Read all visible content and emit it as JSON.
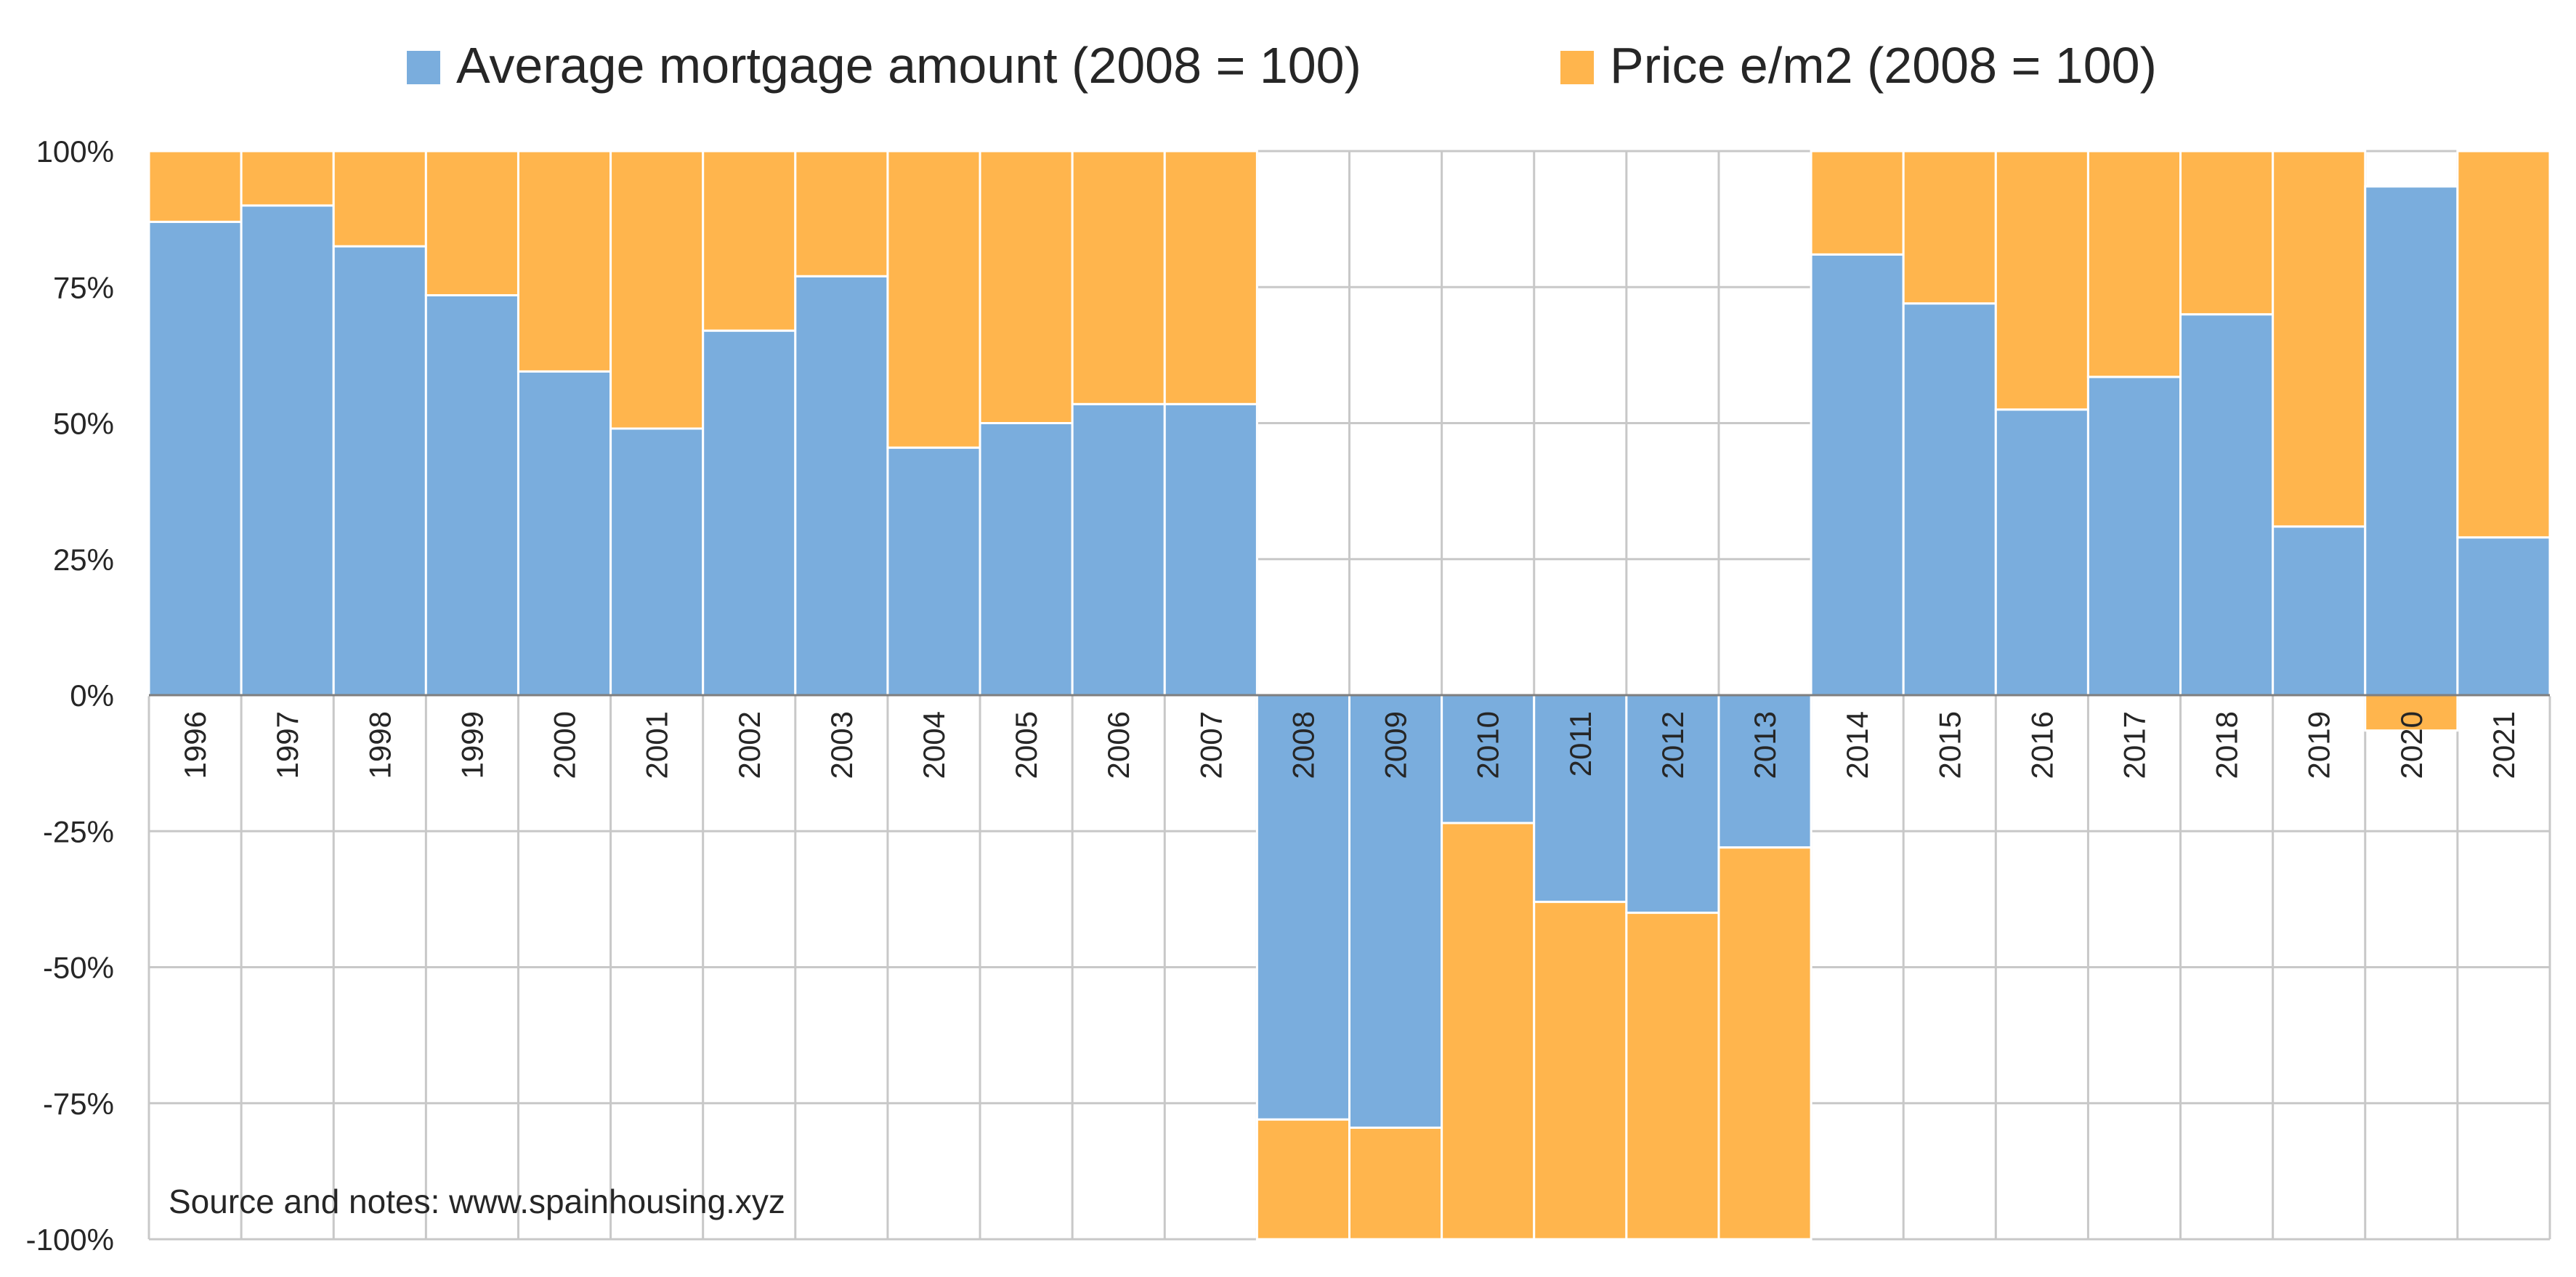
{
  "chart_data": {
    "type": "bar",
    "stacking": "percent-100",
    "categories": [
      "1996",
      "1997",
      "1998",
      "1999",
      "2000",
      "2001",
      "2002",
      "2003",
      "2004",
      "2005",
      "2006",
      "2007",
      "2008",
      "2009",
      "2010",
      "2011",
      "2012",
      "2013",
      "2014",
      "2015",
      "2016",
      "2017",
      "2018",
      "2019",
      "2020",
      "2021"
    ],
    "series": [
      {
        "name": "Average mortgage amount (2008 = 100)",
        "color": "#7aaddd",
        "values": [
          87,
          90,
          82.5,
          73.5,
          59.5,
          49,
          67,
          77,
          45.5,
          50,
          53.5,
          53.5,
          -78,
          -79.5,
          -23.5,
          -38,
          -40,
          -28,
          81,
          72,
          52.5,
          58.5,
          70,
          31,
          93.5,
          29
        ]
      },
      {
        "name": "Price e/m2 (2008 = 100)",
        "color": "#ffb54d",
        "values": [
          13,
          10,
          17.5,
          26.5,
          40.5,
          51,
          33,
          23,
          54.5,
          50,
          46.5,
          46.5,
          -22,
          -20.5,
          -76.5,
          -62,
          -60,
          -72,
          19,
          28,
          47.5,
          41.5,
          30,
          69,
          -6.5,
          71
        ]
      }
    ],
    "legend_position": "top",
    "yticks": [
      "100%",
      "75%",
      "50%",
      "25%",
      "0%",
      "-25%",
      "-50%",
      "-75%",
      "-100%"
    ],
    "ylim": [
      -100,
      100
    ],
    "grid": true,
    "annotation": "Source and notes: www.spainhousing.xyz"
  }
}
